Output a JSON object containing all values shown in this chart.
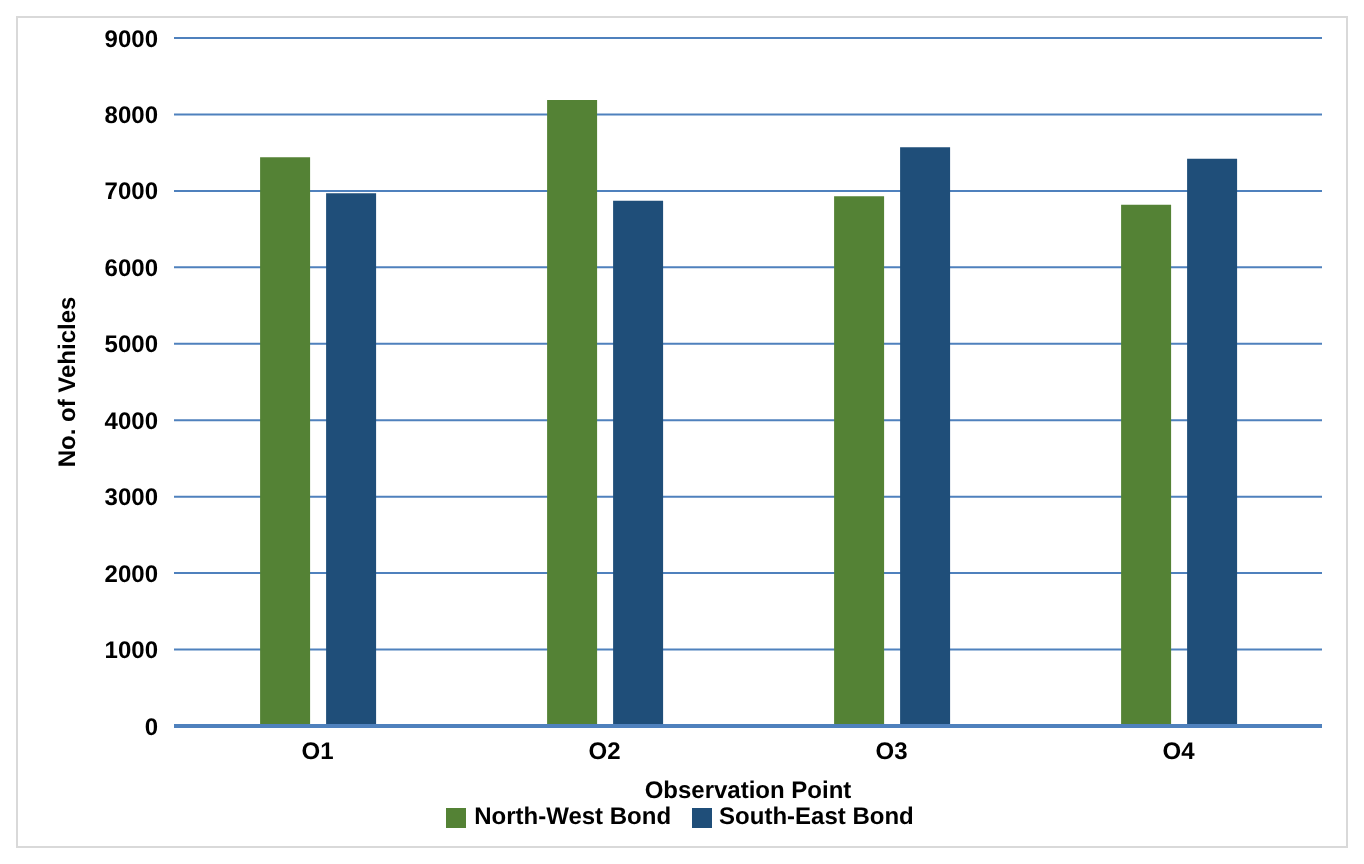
{
  "chart_data": {
    "type": "bar",
    "xlabel": "Observation Point",
    "ylabel": "No. of Vehicles",
    "categories": [
      "O1",
      "O2",
      "O3",
      "O4"
    ],
    "series": [
      {
        "name": "North-West Bond",
        "color": "#548235",
        "values": [
          7440,
          8190,
          6930,
          6820
        ]
      },
      {
        "name": "South-East Bond",
        "color": "#1f4e79",
        "values": [
          6970,
          6870,
          7570,
          7420
        ]
      }
    ],
    "ylim": [
      0,
      9000
    ],
    "yticks": [
      0,
      1000,
      2000,
      3000,
      4000,
      5000,
      6000,
      7000,
      8000,
      9000
    ],
    "grid": "y",
    "legend": "bottom"
  }
}
